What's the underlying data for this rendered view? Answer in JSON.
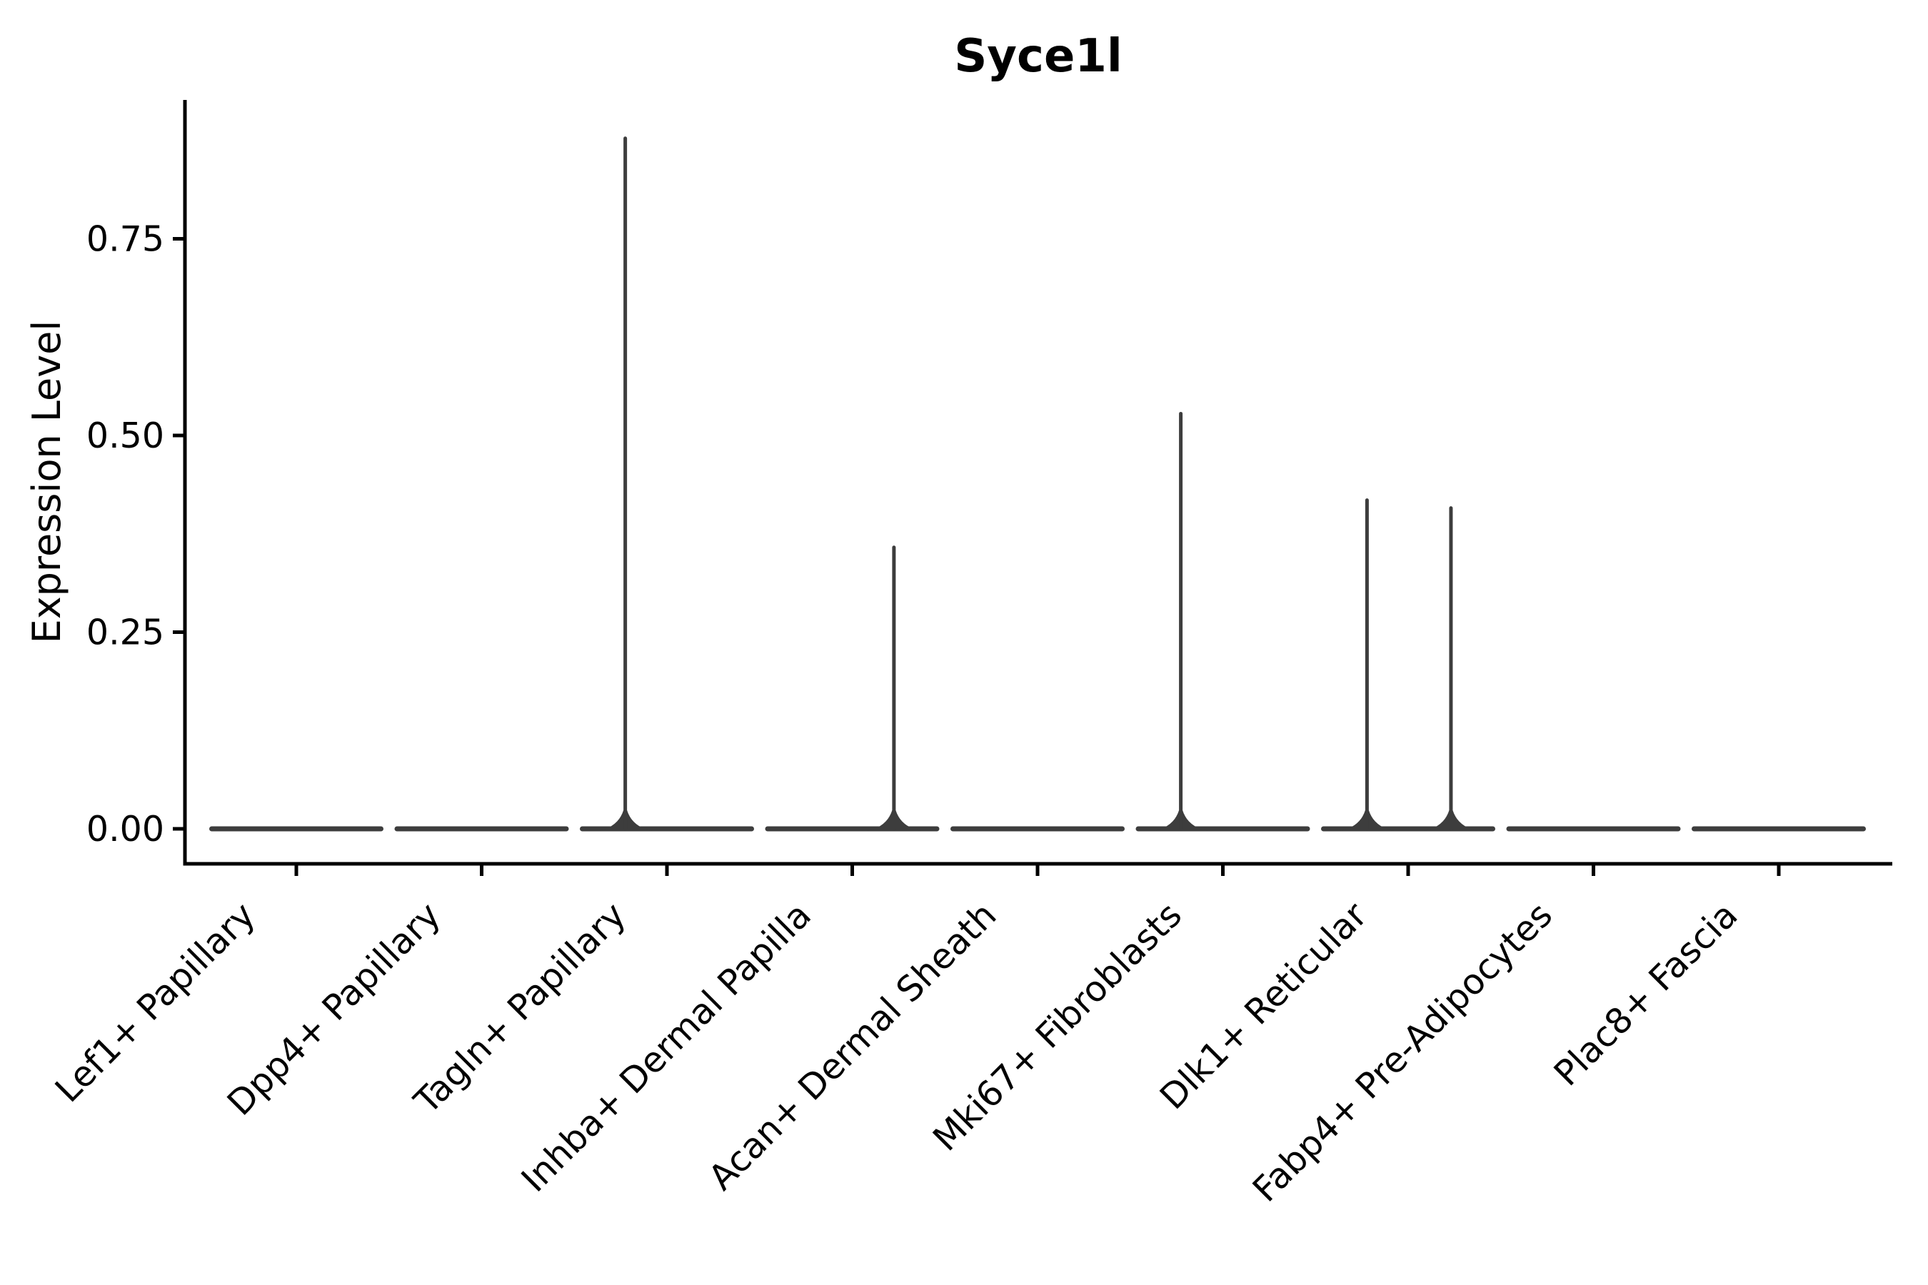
{
  "chart_data": {
    "type": "violin",
    "title": "Syce1l",
    "ylabel": "Expression Level",
    "xlabel": "",
    "ylim": [
      0,
      0.93
    ],
    "yticks": [
      0,
      0.25,
      0.5,
      0.75
    ],
    "ytick_labels": [
      "0.00",
      "0.25",
      "0.50",
      "0.75"
    ],
    "categories": [
      "Lef1+ Papillary",
      "Dpp4+ Papillary",
      "Tagln+ Papillary",
      "Inhba+ Dermal Papilla",
      "Acan+ Dermal Sheath",
      "Mki67+ Fibroblasts",
      "Dlk1+ Reticular",
      "Fabp4+ Pre-Adipocytes",
      "Plac8+ Fascia"
    ],
    "series": [
      {
        "category": "Lef1+ Papillary",
        "max_expression": 0,
        "spikes": []
      },
      {
        "category": "Dpp4+ Papillary",
        "max_expression": 0,
        "spikes": []
      },
      {
        "category": "Tagln+ Papillary",
        "max_expression": 0.88,
        "spikes": [
          {
            "value": 0.88,
            "offset_frac": -0.225
          }
        ]
      },
      {
        "category": "Inhba+ Dermal Papilla",
        "max_expression": 0.36,
        "spikes": [
          {
            "value": 0.36,
            "offset_frac": 0.225
          }
        ]
      },
      {
        "category": "Acan+ Dermal Sheath",
        "max_expression": 0,
        "spikes": []
      },
      {
        "category": "Mki67+ Fibroblasts",
        "max_expression": 0.53,
        "spikes": [
          {
            "value": 0.53,
            "offset_frac": -0.227
          }
        ]
      },
      {
        "category": "Dlk1+ Reticular",
        "max_expression": 0.42,
        "spikes": [
          {
            "value": 0.42,
            "offset_frac": -0.222
          },
          {
            "value": 0.41,
            "offset_frac": 0.231
          }
        ]
      },
      {
        "category": "Fabp4+ Pre-Adipocytes",
        "max_expression": 0,
        "spikes": []
      },
      {
        "category": "Plac8+ Fascia",
        "max_expression": 0,
        "spikes": []
      }
    ],
    "grid": false,
    "legend": null,
    "colors": {
      "background": "#ffffff",
      "axis": "#000000",
      "text": "#000000",
      "violin_stroke": "#3d3d3d"
    }
  }
}
